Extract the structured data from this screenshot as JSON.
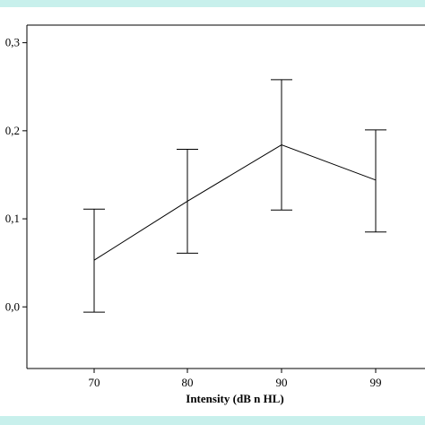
{
  "theme": {
    "band_color": "#c8f0ec",
    "line_color": "#000000"
  },
  "chart_data": {
    "type": "line",
    "title": "",
    "xlabel": "Intensity (dB n HL)",
    "ylabel": "",
    "categories": [
      "70",
      "80",
      "90",
      "99"
    ],
    "y_ticks": [
      "0,0",
      "0,1",
      "0,2",
      "0,3"
    ],
    "ylim": [
      -0.07,
      0.32
    ],
    "grid": false,
    "series": [
      {
        "values": [
          0.053,
          0.12,
          0.184,
          0.144
        ],
        "error_lower": [
          -0.006,
          0.061,
          0.11,
          0.085
        ],
        "error_upper": [
          0.111,
          0.179,
          0.258,
          0.201
        ]
      }
    ]
  }
}
